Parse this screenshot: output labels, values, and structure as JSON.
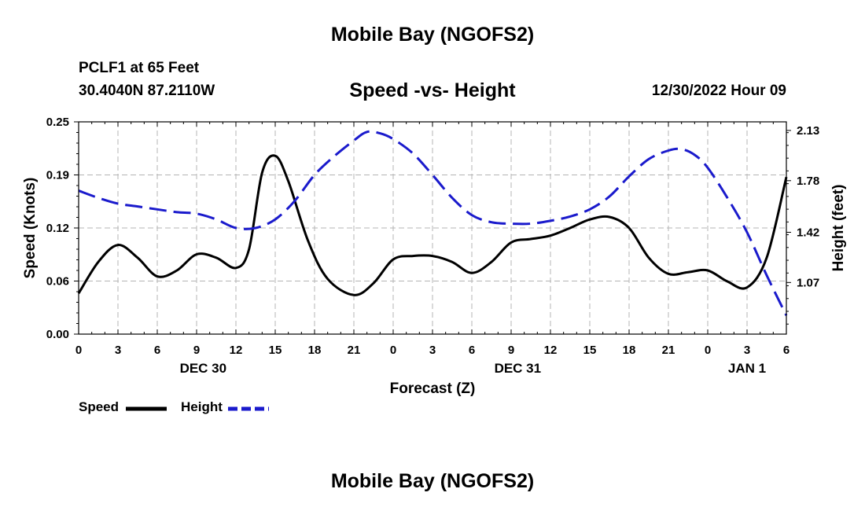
{
  "header": {
    "title": "Mobile Bay (NGOFS2)",
    "station": "PCLF1 at 65 Feet",
    "coords": "30.4040N  87.2110W",
    "subtitle": "Speed -vs- Height",
    "datetime": "12/30/2022 Hour 09"
  },
  "footer": {
    "title": "Mobile Bay (NGOFS2)"
  },
  "legend": {
    "speed_label": "Speed",
    "height_label": "Height"
  },
  "colors": {
    "speed": "#000000",
    "height": "#1a1acc",
    "grid": "#b4b4b4"
  },
  "chart_data": {
    "type": "line",
    "xlabel": "Forecast (Z)",
    "ylabel_left": "Speed (Knots)",
    "ylabel_right": "Height (feet)",
    "x_range_hours": [
      0,
      48
    ],
    "x_ticks": [
      {
        "h": 0,
        "label": "0"
      },
      {
        "h": 3,
        "label": "3"
      },
      {
        "h": 6,
        "label": "6"
      },
      {
        "h": 9,
        "label": "9"
      },
      {
        "h": 12,
        "label": "12"
      },
      {
        "h": 15,
        "label": "15"
      },
      {
        "h": 18,
        "label": "18"
      },
      {
        "h": 21,
        "label": "21"
      },
      {
        "h": 24,
        "label": "0"
      },
      {
        "h": 27,
        "label": "3"
      },
      {
        "h": 30,
        "label": "6"
      },
      {
        "h": 33,
        "label": "9"
      },
      {
        "h": 36,
        "label": "12"
      },
      {
        "h": 39,
        "label": "15"
      },
      {
        "h": 42,
        "label": "18"
      },
      {
        "h": 45,
        "label": "21"
      },
      {
        "h": 48,
        "label": "0"
      },
      {
        "h": 51,
        "label": "3"
      },
      {
        "h": 54,
        "label": "6"
      }
    ],
    "date_labels": [
      {
        "h": 9.5,
        "label": "DEC 30"
      },
      {
        "h": 33.5,
        "label": "DEC 31"
      },
      {
        "h": 51,
        "label": "JAN 1"
      }
    ],
    "y_left_range": [
      0,
      0.25
    ],
    "y_left_ticks": [
      "0.00",
      "0.06",
      "0.12",
      "0.19",
      "0.25"
    ],
    "y_right_range": [
      0.71,
      2.19
    ],
    "y_right_ticks": [
      "1.07",
      "1.42",
      "1.78",
      "2.13"
    ],
    "grid": true,
    "series": [
      {
        "name": "Speed",
        "axis": "left",
        "points": [
          [
            0,
            0.048
          ],
          [
            1.5,
            0.085
          ],
          [
            3,
            0.105
          ],
          [
            4.5,
            0.09
          ],
          [
            6,
            0.068
          ],
          [
            7.5,
            0.075
          ],
          [
            9,
            0.094
          ],
          [
            10.5,
            0.09
          ],
          [
            12,
            0.078
          ],
          [
            13,
            0.1
          ],
          [
            14,
            0.19
          ],
          [
            15,
            0.21
          ],
          [
            16,
            0.18
          ],
          [
            17.5,
            0.11
          ],
          [
            19,
            0.065
          ],
          [
            21,
            0.046
          ],
          [
            22.5,
            0.06
          ],
          [
            24,
            0.088
          ],
          [
            25.5,
            0.092
          ],
          [
            27,
            0.092
          ],
          [
            28.5,
            0.085
          ],
          [
            30,
            0.072
          ],
          [
            31.5,
            0.085
          ],
          [
            33,
            0.108
          ],
          [
            34.5,
            0.112
          ],
          [
            36,
            0.116
          ],
          [
            37.5,
            0.125
          ],
          [
            39,
            0.135
          ],
          [
            40.5,
            0.138
          ],
          [
            42,
            0.125
          ],
          [
            43.5,
            0.09
          ],
          [
            45,
            0.071
          ],
          [
            46.5,
            0.073
          ],
          [
            48,
            0.075
          ],
          [
            49.5,
            0.062
          ],
          [
            51,
            0.055
          ],
          [
            52.5,
            0.09
          ],
          [
            54,
            0.185
          ]
        ]
      },
      {
        "name": "Height",
        "axis": "right",
        "points": [
          [
            0,
            1.71
          ],
          [
            1.5,
            1.66
          ],
          [
            3,
            1.62
          ],
          [
            4.5,
            1.6
          ],
          [
            6,
            1.58
          ],
          [
            7.5,
            1.56
          ],
          [
            9,
            1.55
          ],
          [
            10.5,
            1.51
          ],
          [
            12,
            1.45
          ],
          [
            13.5,
            1.45
          ],
          [
            15,
            1.51
          ],
          [
            16.5,
            1.64
          ],
          [
            18,
            1.82
          ],
          [
            19.5,
            1.95
          ],
          [
            21,
            2.06
          ],
          [
            22,
            2.12
          ],
          [
            23,
            2.11
          ],
          [
            24,
            2.07
          ],
          [
            25.5,
            1.97
          ],
          [
            27,
            1.82
          ],
          [
            28.5,
            1.66
          ],
          [
            30,
            1.54
          ],
          [
            31.5,
            1.49
          ],
          [
            33,
            1.48
          ],
          [
            34.5,
            1.48
          ],
          [
            36,
            1.5
          ],
          [
            37.5,
            1.53
          ],
          [
            39,
            1.58
          ],
          [
            40.5,
            1.67
          ],
          [
            42,
            1.81
          ],
          [
            43.5,
            1.93
          ],
          [
            45,
            1.99
          ],
          [
            46,
            2.0
          ],
          [
            47,
            1.96
          ],
          [
            48,
            1.87
          ],
          [
            49.5,
            1.66
          ],
          [
            51,
            1.42
          ],
          [
            52.5,
            1.12
          ],
          [
            54,
            0.84
          ]
        ]
      }
    ]
  }
}
